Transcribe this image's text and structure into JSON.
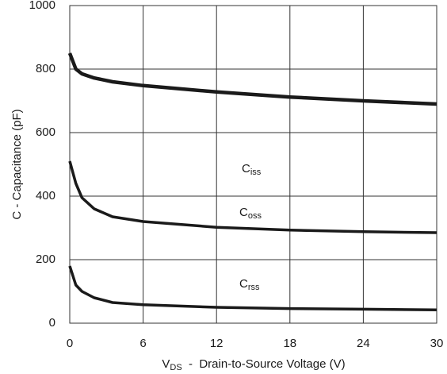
{
  "chart_data": {
    "type": "line",
    "ylabel": "C - Capacitance (pF)",
    "xlabel": {
      "main": "V",
      "sub": "DS",
      "rest": "  -  Drain-to-Source Voltage (V)"
    },
    "x": [
      0,
      0.5,
      1,
      2,
      3.5,
      6,
      12,
      18,
      24,
      30
    ],
    "series": [
      {
        "name": "C",
        "subscript": "iss",
        "color": "#1a1a1a",
        "values": [
          850,
          800,
          785,
          772,
          760,
          748,
          728,
          712,
          700,
          690
        ]
      },
      {
        "name": "C",
        "subscript": "oss",
        "color": "#1a1a1a",
        "values": [
          510,
          440,
          395,
          360,
          335,
          320,
          302,
          293,
          288,
          285
        ]
      },
      {
        "name": "C",
        "subscript": "rss",
        "color": "#1a1a1a",
        "values": [
          180,
          120,
          100,
          80,
          65,
          58,
          50,
          46,
          44,
          42
        ]
      }
    ],
    "xlim": [
      0,
      30
    ],
    "xticks": [
      0,
      6,
      12,
      18,
      24,
      30
    ],
    "ylim": [
      0,
      1000
    ],
    "yticks": [
      0,
      200,
      400,
      600,
      800,
      1000
    ],
    "grid": true
  }
}
